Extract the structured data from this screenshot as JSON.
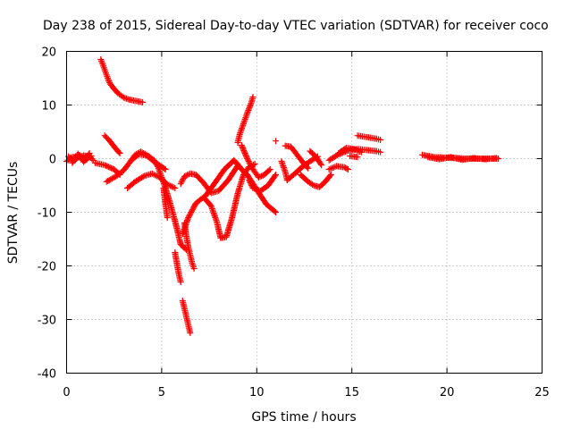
{
  "chart_data": {
    "type": "scatter",
    "title": "Day 238 of 2015, Sidereal Day-to-day VTEC variation (SDTVAR) for receiver coco",
    "xlabel": "GPS time / hours",
    "ylabel": "SDTVAR / TECUs",
    "xlim": [
      0,
      25
    ],
    "ylim": [
      -40,
      20
    ],
    "xticks": [
      0,
      5,
      10,
      15,
      20,
      25
    ],
    "yticks": [
      -40,
      -30,
      -20,
      -10,
      0,
      10,
      20
    ],
    "grid": true,
    "marker": "+",
    "color": "#ff0000",
    "series": [
      {
        "name": "s1",
        "x": [
          0.0,
          0.3,
          0.6,
          0.9,
          1.2,
          1.4
        ],
        "y": [
          -0.5,
          0.3,
          0.2,
          0.6,
          0.4,
          -0.3
        ]
      },
      {
        "name": "s2",
        "x": [
          0.1,
          0.4,
          0.7,
          1.0,
          1.3
        ],
        "y": [
          0.4,
          -0.4,
          0.6,
          -0.3,
          0.5
        ]
      },
      {
        "name": "s3",
        "x": [
          0.3,
          0.6,
          0.9,
          1.2
        ],
        "y": [
          -0.8,
          0.9,
          -0.6,
          1.0
        ]
      },
      {
        "name": "s4",
        "x": [
          1.8,
          1.9,
          2.0,
          2.1,
          2.2,
          2.3,
          2.5,
          2.7,
          3.0,
          3.3,
          3.6,
          4.0
        ],
        "y": [
          18.5,
          17.6,
          16.6,
          15.6,
          14.7,
          13.9,
          13.0,
          12.2,
          11.4,
          11.0,
          10.8,
          10.5
        ]
      },
      {
        "name": "s5",
        "x": [
          2.0,
          2.2,
          2.4,
          2.6,
          2.8
        ],
        "y": [
          4.3,
          3.6,
          2.7,
          1.8,
          1.0
        ]
      },
      {
        "name": "s6",
        "x": [
          2.1,
          2.6,
          3.0,
          3.3,
          3.6,
          3.9,
          4.2,
          4.5
        ],
        "y": [
          -4.3,
          -3.3,
          -2.2,
          -0.8,
          0.7,
          1.3,
          0.7,
          -0.2
        ]
      },
      {
        "name": "s7",
        "x": [
          1.5,
          2.0,
          2.5,
          2.8
        ],
        "y": [
          -0.8,
          -1.2,
          -2.0,
          -3.0
        ]
      },
      {
        "name": "s8",
        "x": [
          3.2,
          3.6,
          4.1,
          4.5,
          4.9,
          5.3,
          5.7
        ],
        "y": [
          -5.5,
          -4.3,
          -3.2,
          -2.8,
          -3.5,
          -4.8,
          -5.5
        ]
      },
      {
        "name": "s9",
        "x": [
          3.4,
          3.8,
          4.2,
          4.7,
          5.2
        ],
        "y": [
          -0.3,
          0.8,
          0.6,
          -0.8,
          -2.0
        ]
      },
      {
        "name": "s10",
        "x": [
          4.3,
          4.6,
          4.8,
          5.0,
          5.2,
          5.4,
          5.6,
          5.8,
          6.0,
          6.3
        ],
        "y": [
          0.5,
          -0.3,
          -1.5,
          -3.5,
          -5.5,
          -7.8,
          -10.3,
          -13.0,
          -16.0,
          -17.0
        ]
      },
      {
        "name": "s11",
        "x": [
          5.1,
          5.2,
          5.3
        ],
        "y": [
          -5.5,
          -8.5,
          -11.0
        ]
      },
      {
        "name": "s12",
        "x": [
          5.7,
          5.8,
          5.9,
          6.0
        ],
        "y": [
          -17.5,
          -19.5,
          -21.5,
          -23.0
        ]
      },
      {
        "name": "s13",
        "x": [
          6.1,
          6.2,
          6.3,
          6.4,
          6.5
        ],
        "y": [
          -26.5,
          -28.0,
          -29.5,
          -31.0,
          -32.5
        ]
      },
      {
        "name": "s14",
        "x": [
          6.2,
          6.3,
          6.4,
          6.5,
          6.6,
          6.7
        ],
        "y": [
          -12.0,
          -14.5,
          -16.5,
          -18.0,
          -19.5,
          -20.5
        ]
      },
      {
        "name": "s15",
        "x": [
          6.1,
          6.4,
          6.8,
          7.2,
          7.6,
          7.9,
          8.1,
          8.4,
          8.7,
          9.0,
          9.3,
          9.6,
          9.9
        ],
        "y": [
          -14.0,
          -11.0,
          -8.3,
          -7.2,
          -8.8,
          -11.8,
          -14.8,
          -14.6,
          -11.0,
          -6.5,
          -3.0,
          -1.5,
          -1.0
        ]
      },
      {
        "name": "s16",
        "x": [
          6.0,
          6.2,
          6.5,
          6.8,
          7.2,
          7.6,
          8.0,
          8.5,
          9.0,
          9.5,
          10.0,
          10.5,
          11.0
        ],
        "y": [
          -4.7,
          -3.3,
          -2.8,
          -3.0,
          -4.5,
          -6.4,
          -6.0,
          -4.0,
          -1.3,
          -3.0,
          -5.8,
          -8.5,
          -10.0
        ]
      },
      {
        "name": "s17",
        "x": [
          7.3,
          7.8,
          8.3,
          8.8,
          9.1
        ],
        "y": [
          -7.0,
          -4.5,
          -2.0,
          -0.3,
          -1.5
        ]
      },
      {
        "name": "s18",
        "x": [
          9.0,
          9.1,
          9.3,
          9.5,
          9.7,
          9.8
        ],
        "y": [
          3.0,
          4.5,
          6.5,
          8.5,
          10.3,
          11.5
        ]
      },
      {
        "name": "s19",
        "x": [
          9.2,
          9.5,
          9.8,
          10.1,
          10.4,
          10.7
        ],
        "y": [
          2.5,
          0.0,
          -2.0,
          -3.5,
          -3.0,
          -2.0
        ]
      },
      {
        "name": "s20",
        "x": [
          9.6,
          9.8,
          10.2,
          10.6,
          11.0
        ],
        "y": [
          -4.0,
          -5.5,
          -6.0,
          -5.0,
          -3.0
        ]
      },
      {
        "name": "s21",
        "x": [
          11.0
        ],
        "y": [
          3.3
        ]
      },
      {
        "name": "s22",
        "x": [
          11.3,
          11.5,
          11.6
        ],
        "y": [
          -0.5,
          -2.5,
          -4.0
        ]
      },
      {
        "name": "s23",
        "x": [
          11.5,
          11.8,
          12.1,
          12.4,
          12.7
        ],
        "y": [
          2.4,
          2.2,
          0.8,
          -0.6,
          -1.8
        ]
      },
      {
        "name": "s24",
        "x": [
          11.6,
          12.0,
          12.4,
          12.8,
          13.2
        ],
        "y": [
          -4.0,
          -2.8,
          -1.5,
          -0.5,
          0.4
        ]
      },
      {
        "name": "s25",
        "x": [
          12.3,
          12.7,
          13.0,
          13.3,
          13.6,
          13.9
        ],
        "y": [
          -3.0,
          -4.3,
          -5.0,
          -5.3,
          -4.3,
          -3.0
        ]
      },
      {
        "name": "s26",
        "x": [
          12.8,
          13.1,
          13.4
        ],
        "y": [
          1.4,
          0.4,
          -1.2
        ]
      },
      {
        "name": "s27",
        "x": [
          13.8,
          14.2,
          14.6,
          14.8
        ],
        "y": [
          -2.0,
          -1.4,
          -1.6,
          -2.0
        ]
      },
      {
        "name": "s28",
        "x": [
          13.8,
          14.3,
          14.8,
          15.3,
          15.8,
          16.3,
          16.5
        ],
        "y": [
          -0.3,
          0.8,
          1.5,
          1.8,
          1.6,
          1.4,
          1.2
        ]
      },
      {
        "name": "s29",
        "x": [
          14.3,
          14.7,
          15.1,
          15.5
        ],
        "y": [
          1.0,
          2.0,
          1.8,
          1.2
        ]
      },
      {
        "name": "s30",
        "x": [
          14.9,
          15.3
        ],
        "y": [
          0.5,
          0.3
        ]
      },
      {
        "name": "s31",
        "x": [
          15.3,
          15.8,
          16.3,
          16.5
        ],
        "y": [
          4.3,
          4.0,
          3.7,
          3.5
        ]
      },
      {
        "name": "s32",
        "x": [
          18.7,
          19.3,
          19.9,
          20.5,
          21.1,
          21.7,
          22.3,
          22.7
        ],
        "y": [
          0.7,
          0.3,
          0.2,
          0.1,
          0.0,
          0.0,
          0.0,
          0.0
        ]
      },
      {
        "name": "s33",
        "x": [
          19.0,
          19.6,
          20.2,
          20.8,
          21.4,
          22.0,
          22.6
        ],
        "y": [
          0.3,
          -0.1,
          0.3,
          -0.2,
          0.1,
          -0.1,
          0.1
        ]
      }
    ]
  }
}
